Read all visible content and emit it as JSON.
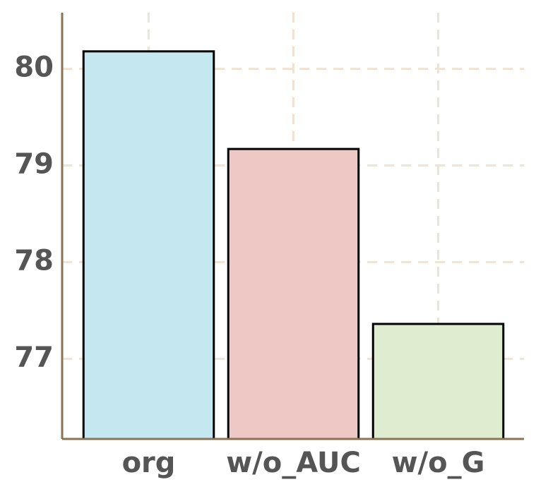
{
  "chart_data": {
    "type": "bar",
    "categories": [
      "org",
      "w/o_AUC",
      "w/o_G"
    ],
    "values": [
      80.18,
      79.17,
      77.36
    ],
    "colors": [
      "#c5e8f0",
      "#eec8c4",
      "#deecd0"
    ],
    "ylim": [
      76.17,
      80.58
    ],
    "yticks": [
      77,
      78,
      79,
      80
    ],
    "grid": true
  }
}
